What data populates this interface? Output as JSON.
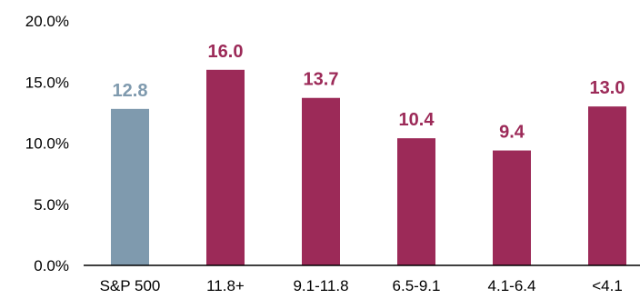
{
  "chart_data": {
    "type": "bar",
    "title": "",
    "xlabel": "",
    "ylabel": "",
    "categories": [
      "S&P 500",
      "11.8+",
      "9.1-11.8",
      "6.5-9.1",
      "4.1-6.4",
      "<4.1"
    ],
    "values": [
      12.8,
      16.0,
      13.7,
      10.4,
      9.4,
      13.0
    ],
    "value_labels": [
      "12.8",
      "16.0",
      "13.7",
      "10.4",
      "9.4",
      "13.0"
    ],
    "ylim": [
      0,
      20
    ],
    "yticks": [
      0,
      5,
      10,
      15,
      20
    ],
    "ytick_labels": [
      "0.0%",
      "5.0%",
      "10.0%",
      "15.0%",
      "20.0%"
    ],
    "grid": false,
    "legend": "none",
    "colors": {
      "benchmark": "#7f9aae",
      "bars": "#9c2a58",
      "axis": "#000000"
    }
  }
}
